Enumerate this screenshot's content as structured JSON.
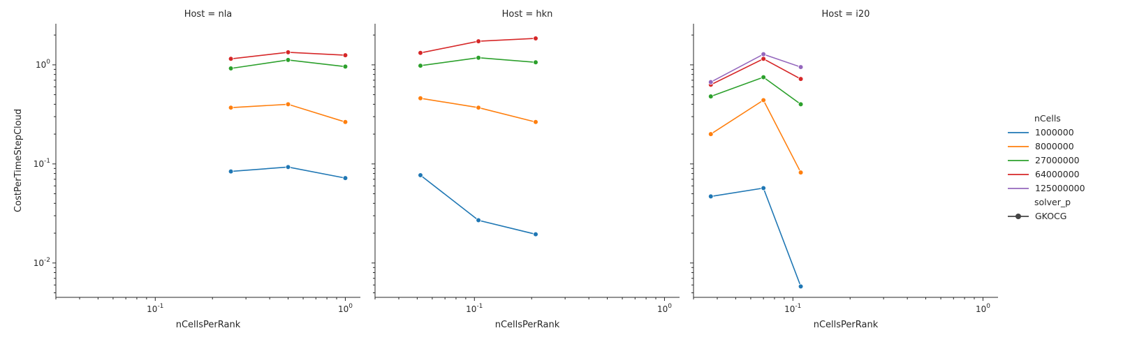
{
  "chart_data": {
    "type": "line",
    "facet_label": "Host",
    "xlabel": "nCellsPerRank",
    "ylabel": "CostPerTimeStepCloud",
    "x_scale": "log",
    "y_scale": "log",
    "xlim": [
      0.03,
      1.2
    ],
    "ylim": [
      0.0045,
      2.6
    ],
    "x_ticks": [
      0.1,
      1.0
    ],
    "x_tick_labels": [
      "10^-1",
      "10^0"
    ],
    "y_ticks": [
      0.01,
      0.1,
      1.0
    ],
    "y_tick_labels": [
      "10^-2",
      "10^-1",
      "10^0"
    ],
    "grid": false,
    "legend": {
      "placement": "right",
      "hue_title": "nCells",
      "hue_entries": [
        {
          "label": "1000000",
          "color": "#1f77b4"
        },
        {
          "label": "8000000",
          "color": "#ff7f0e"
        },
        {
          "label": "27000000",
          "color": "#2ca02c"
        },
        {
          "label": "64000000",
          "color": "#d62728"
        },
        {
          "label": "125000000",
          "color": "#9467bd"
        }
      ],
      "style_title": "solver_p",
      "style_entries": [
        {
          "label": "GKOCG",
          "color": "#444444",
          "marker": "circle"
        }
      ]
    },
    "panels": [
      {
        "host": "nla",
        "title": "Host = nla",
        "series": [
          {
            "name": "1000000",
            "color": "#1f77b4",
            "x": [
              0.25,
              0.5,
              1.0
            ],
            "y": [
              0.084,
              0.093,
              0.072
            ]
          },
          {
            "name": "8000000",
            "color": "#ff7f0e",
            "x": [
              0.25,
              0.5,
              1.0
            ],
            "y": [
              0.37,
              0.4,
              0.265
            ]
          },
          {
            "name": "27000000",
            "color": "#2ca02c",
            "x": [
              0.25,
              0.5,
              1.0
            ],
            "y": [
              0.92,
              1.12,
              0.96
            ]
          },
          {
            "name": "64000000",
            "color": "#d62728",
            "x": [
              0.25,
              0.5,
              1.0
            ],
            "y": [
              1.15,
              1.34,
              1.25
            ]
          }
        ]
      },
      {
        "host": "hkn",
        "title": "Host = hkn",
        "series": [
          {
            "name": "1000000",
            "color": "#1f77b4",
            "x": [
              0.052,
              0.105,
              0.21
            ],
            "y": [
              0.077,
              0.027,
              0.0195
            ]
          },
          {
            "name": "8000000",
            "color": "#ff7f0e",
            "x": [
              0.052,
              0.105,
              0.21
            ],
            "y": [
              0.46,
              0.37,
              0.265
            ]
          },
          {
            "name": "27000000",
            "color": "#2ca02c",
            "x": [
              0.052,
              0.105,
              0.21
            ],
            "y": [
              0.98,
              1.18,
              1.06
            ]
          },
          {
            "name": "64000000",
            "color": "#d62728",
            "x": [
              0.052,
              0.105,
              0.21
            ],
            "y": [
              1.32,
              1.73,
              1.85
            ]
          }
        ]
      },
      {
        "host": "i20",
        "title": "Host = i20",
        "series": [
          {
            "name": "1000000",
            "color": "#1f77b4",
            "x": [
              0.037,
              0.07,
              0.11
            ],
            "y": [
              0.047,
              0.057,
              0.0058
            ]
          },
          {
            "name": "8000000",
            "color": "#ff7f0e",
            "x": [
              0.037,
              0.07,
              0.11
            ],
            "y": [
              0.2,
              0.44,
              0.082
            ]
          },
          {
            "name": "27000000",
            "color": "#2ca02c",
            "x": [
              0.037,
              0.07,
              0.11
            ],
            "y": [
              0.48,
              0.75,
              0.4
            ]
          },
          {
            "name": "64000000",
            "color": "#d62728",
            "x": [
              0.037,
              0.07,
              0.11
            ],
            "y": [
              0.63,
              1.15,
              0.72
            ]
          },
          {
            "name": "125000000",
            "color": "#9467bd",
            "x": [
              0.037,
              0.07,
              0.11
            ],
            "y": [
              0.67,
              1.28,
              0.95
            ]
          }
        ]
      }
    ]
  }
}
